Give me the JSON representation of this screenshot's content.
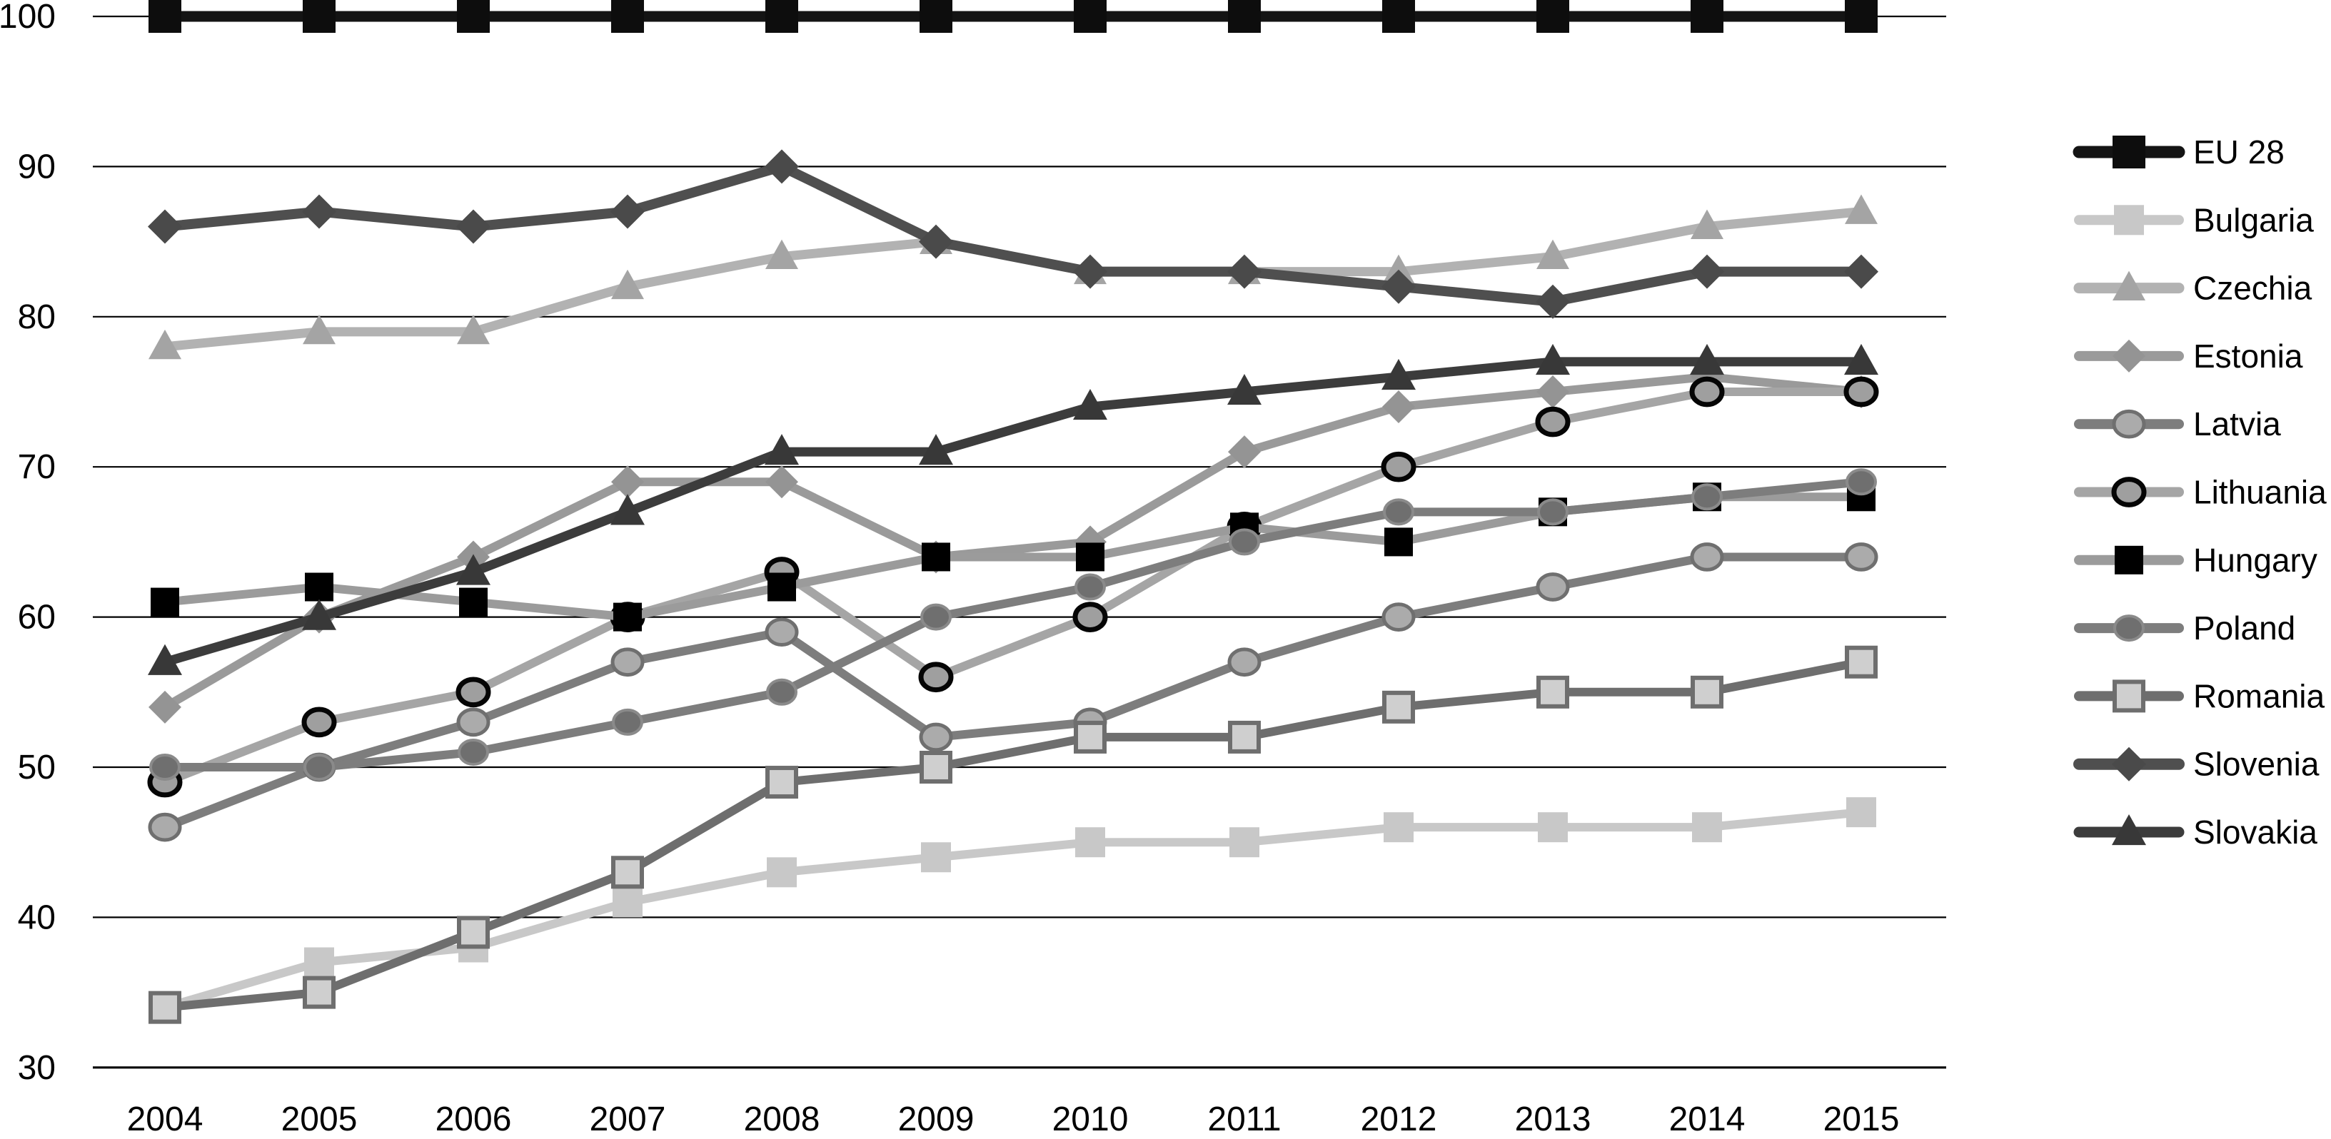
{
  "figure": {
    "background_color": "#ffffff",
    "grid_color": "#000000",
    "text_color": "#000000",
    "y_tick_labels": [
      "100",
      "90",
      "80",
      "70",
      "60",
      "50",
      "40",
      "30"
    ],
    "x_tick_labels": [
      "2004",
      "2005",
      "2006",
      "2007",
      "2008",
      "2009",
      "2010",
      "2011",
      "2012",
      "2013",
      "2014",
      "2015"
    ]
  },
  "chart_data": {
    "type": "line",
    "title": "",
    "xlabel": "",
    "ylabel": "",
    "categories": [
      2004,
      2005,
      2006,
      2007,
      2008,
      2009,
      2010,
      2011,
      2012,
      2013,
      2014,
      2015
    ],
    "ylim": [
      30,
      100
    ],
    "yticks": [
      100,
      90,
      80,
      70,
      60,
      50,
      40,
      30
    ],
    "grid": true,
    "legend_position": "right",
    "series": [
      {
        "name": "EU 28",
        "values": [
          100,
          100,
          100,
          100,
          100,
          100,
          100,
          100,
          100,
          100,
          100,
          100
        ],
        "line_color": "#141414",
        "line_width": 15,
        "marker": {
          "shape": "square",
          "size": 46,
          "fill": "#0d0d0d",
          "stroke": "none",
          "stroke_width": 0
        }
      },
      {
        "name": "Bulgaria",
        "values": [
          34,
          37,
          38,
          41,
          43,
          44,
          45,
          45,
          46,
          46,
          46,
          47
        ],
        "line_color": "#c8c8c8",
        "line_width": 12,
        "marker": {
          "shape": "square",
          "size": 42,
          "fill": "#c8c8c8",
          "stroke": "none",
          "stroke_width": 0
        }
      },
      {
        "name": "Czechia",
        "values": [
          78,
          79,
          79,
          82,
          84,
          85,
          83,
          83,
          83,
          84,
          86,
          87
        ],
        "line_color": "#b2b2b2",
        "line_width": 13,
        "marker": {
          "shape": "triangle",
          "size": 46,
          "fill": "#a4a4a4",
          "stroke": "none",
          "stroke_width": 0
        }
      },
      {
        "name": "Estonia",
        "values": [
          54,
          60,
          64,
          69,
          69,
          64,
          65,
          71,
          74,
          75,
          76,
          75
        ],
        "line_color": "#9a9a9a",
        "line_width": 12,
        "marker": {
          "shape": "diamond",
          "size": 46,
          "fill": "#949494",
          "stroke": "none",
          "stroke_width": 0
        }
      },
      {
        "name": "Latvia",
        "values": [
          46,
          50,
          53,
          57,
          59,
          52,
          53,
          57,
          60,
          62,
          64,
          64
        ],
        "line_color": "#7d7d7d",
        "line_width": 12,
        "marker": {
          "shape": "circle",
          "size": 42,
          "fill": "#ababab",
          "stroke": "#6f6f6f",
          "stroke_width": 5
        }
      },
      {
        "name": "Lithuania",
        "values": [
          49,
          53,
          55,
          60,
          63,
          56,
          60,
          66,
          70,
          73,
          75,
          75
        ],
        "line_color": "#a5a5a5",
        "line_width": 12,
        "marker": {
          "shape": "circle",
          "size": 42,
          "fill": "#9f9f9f",
          "stroke": "#050505",
          "stroke_width": 7
        }
      },
      {
        "name": "Hungary",
        "values": [
          61,
          62,
          61,
          60,
          62,
          64,
          64,
          66,
          65,
          67,
          68,
          68
        ],
        "line_color": "#9b9b9b",
        "line_width": 12,
        "marker": {
          "shape": "square",
          "size": 40,
          "fill": "#000000",
          "stroke": "none",
          "stroke_width": 0
        }
      },
      {
        "name": "Poland",
        "values": [
          50,
          50,
          51,
          53,
          55,
          60,
          62,
          65,
          67,
          67,
          68,
          69
        ],
        "line_color": "#7d7d7d",
        "line_width": 12,
        "marker": {
          "shape": "circle",
          "size": 40,
          "fill": "#6f6f6f",
          "stroke": "#8a8a8a",
          "stroke_width": 4
        }
      },
      {
        "name": "Romania",
        "values": [
          34,
          35,
          39,
          43,
          49,
          50,
          52,
          52,
          54,
          55,
          55,
          57
        ],
        "line_color": "#6e6e6e",
        "line_width": 12,
        "marker": {
          "shape": "square",
          "size": 40,
          "fill": "#cfcfcf",
          "stroke": "#6e6e6e",
          "stroke_width": 6
        }
      },
      {
        "name": "Slovenia",
        "values": [
          86,
          87,
          86,
          87,
          90,
          85,
          83,
          83,
          82,
          81,
          83,
          83
        ],
        "line_color": "#4f4f4f",
        "line_width": 14,
        "marker": {
          "shape": "diamond",
          "size": 48,
          "fill": "#4a4a4a",
          "stroke": "none",
          "stroke_width": 0
        }
      },
      {
        "name": "Slovakia",
        "values": [
          57,
          60,
          63,
          67,
          71,
          71,
          74,
          75,
          76,
          77,
          77,
          77
        ],
        "line_color": "#3c3c3c",
        "line_width": 13,
        "marker": {
          "shape": "triangle",
          "size": 48,
          "fill": "#383838",
          "stroke": "none",
          "stroke_width": 0
        }
      }
    ]
  }
}
